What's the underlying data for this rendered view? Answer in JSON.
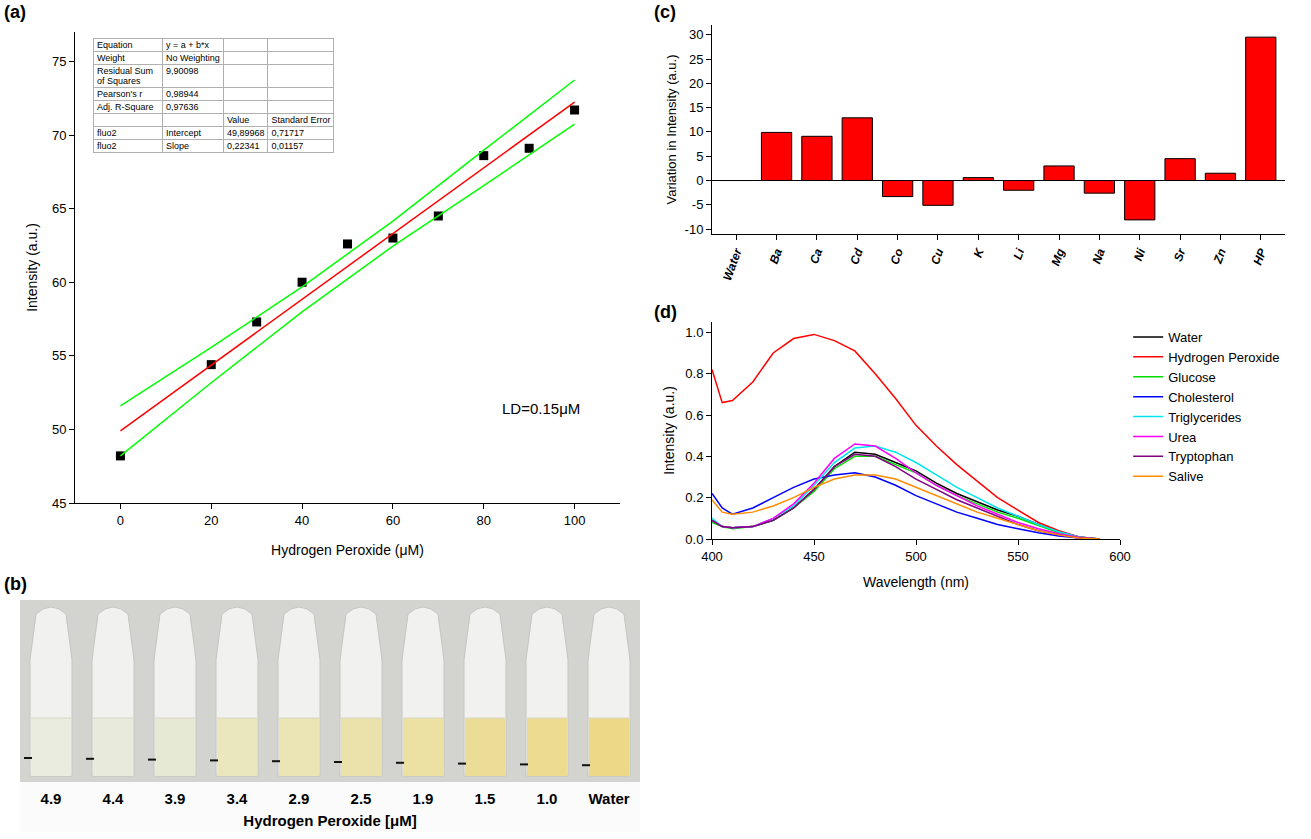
{
  "chart_data": [
    {
      "type": "scatter",
      "panel": "(a)",
      "xlabel": "Hydrogen Peroxide (μM)",
      "ylabel": "Intensity (a.u.)",
      "annotation": "LD=0.15μM",
      "xlim": [
        -10,
        110
      ],
      "xticks": [
        0,
        20,
        40,
        60,
        80,
        100
      ],
      "ylim": [
        45,
        77
      ],
      "yticks": [
        45,
        50,
        55,
        60,
        65,
        70,
        75
      ],
      "grid": false,
      "table": {
        "info": [
          [
            "Equation",
            "y = a + b*x"
          ],
          [
            "Weight",
            "No Weighting"
          ],
          [
            "Residual Sum of Squares",
            "9,90098"
          ],
          [
            "Pearson's r",
            "0,98944"
          ],
          [
            "Adj. R-Square",
            "0,97636"
          ]
        ],
        "header": [
          "Value",
          "Standard Error"
        ],
        "rows": [
          [
            "fluo2",
            "Intercept",
            "49,89968",
            "0,71717"
          ],
          [
            "fluo2",
            "Slope",
            "0,22341",
            "0,01157"
          ]
        ]
      },
      "series": [
        {
          "type": "scatter",
          "marker": "square",
          "color": "#000000",
          "x": [
            0,
            20,
            30,
            40,
            50,
            60,
            70,
            80,
            90,
            100
          ],
          "values": [
            48.2,
            54.4,
            57.3,
            60.0,
            62.6,
            63.0,
            64.5,
            68.6,
            69.1,
            71.7
          ]
        },
        {
          "type": "line",
          "color": "#ff0000",
          "x": [
            0,
            100
          ],
          "values": [
            49.9,
            72.24
          ]
        },
        {
          "type": "line",
          "color": "#00ff00",
          "x": [
            0,
            20,
            40,
            60,
            80,
            100
          ],
          "values": [
            51.6,
            55.57,
            59.69,
            64.15,
            68.97,
            73.74
          ]
        },
        {
          "type": "line",
          "color": "#00ff00",
          "x": [
            0,
            20,
            40,
            60,
            80,
            100
          ],
          "values": [
            48.2,
            53.17,
            57.99,
            62.45,
            66.57,
            70.74
          ]
        }
      ]
    },
    {
      "type": "photo",
      "panel": "(b)",
      "categories": [
        "4.9",
        "4.4",
        "3.9",
        "3.4",
        "2.9",
        "2.5",
        "1.9",
        "1.5",
        "1.0",
        "Water"
      ],
      "colors": [
        "#e9ecdf",
        "#e8ebdc",
        "#e6e9d4",
        "#eae6bd",
        "#ebe4b4",
        "#ebe1aa",
        "#ece0a3",
        "#ebdc98",
        "#eddb8f",
        "#edd888"
      ],
      "xlabel": "Hydrogen Peroxide [μM]"
    },
    {
      "type": "bar",
      "panel": "(c)",
      "ylabel": "Variation in Intensity (a.u.)",
      "categories": [
        "Water",
        "Ba",
        "Ca",
        "Cd",
        "Co",
        "Cu",
        "K",
        "Li",
        "Mg",
        "Na",
        "Ni",
        "Sr",
        "Zn",
        "HP"
      ],
      "values": [
        0,
        9.9,
        9.1,
        12.9,
        -3.3,
        -5.1,
        0.6,
        -2.0,
        3.0,
        -2.6,
        -8.1,
        4.5,
        1.5,
        29.5
      ],
      "color": "#ff0000",
      "ylim": [
        -11,
        32
      ],
      "yticks": [
        -10,
        -5,
        0,
        5,
        10,
        15,
        20,
        25,
        30
      ],
      "grid": false
    },
    {
      "type": "line",
      "panel": "(d)",
      "xlabel": "Wavelength (nm)",
      "ylabel": "Intensity (a.u.)",
      "x": [
        400,
        405,
        410,
        420,
        430,
        440,
        450,
        460,
        470,
        480,
        490,
        500,
        510,
        520,
        530,
        540,
        550,
        560,
        570,
        580,
        590
      ],
      "xlim": [
        400,
        600
      ],
      "xticks": [
        400,
        450,
        500,
        550,
        600
      ],
      "ylim": [
        0,
        1.05
      ],
      "yticks": [
        {
          "value": 0,
          "label": "0.0"
        },
        0.2,
        0.4,
        0.6,
        0.8,
        {
          "value": 1,
          "label": "1.0"
        }
      ],
      "grid": false,
      "legend": "right",
      "series": [
        {
          "name": "Water",
          "color": "#000000",
          "values": [
            0.09,
            0.06,
            0.055,
            0.06,
            0.09,
            0.15,
            0.24,
            0.35,
            0.42,
            0.41,
            0.37,
            0.33,
            0.27,
            0.22,
            0.18,
            0.14,
            0.11,
            0.07,
            0.035,
            0.01,
            0
          ]
        },
        {
          "name": "Hydrogen Peroxide",
          "color": "#ff0000",
          "values": [
            0.82,
            0.66,
            0.67,
            0.76,
            0.9,
            0.97,
            0.99,
            0.96,
            0.91,
            0.8,
            0.68,
            0.55,
            0.45,
            0.36,
            0.28,
            0.2,
            0.14,
            0.08,
            0.04,
            0.01,
            0
          ]
        },
        {
          "name": "Glucose",
          "color": "#00dd00",
          "values": [
            0.08,
            0.06,
            0.05,
            0.06,
            0.09,
            0.15,
            0.23,
            0.34,
            0.4,
            0.4,
            0.36,
            0.32,
            0.26,
            0.21,
            0.17,
            0.13,
            0.1,
            0.065,
            0.03,
            0.008,
            0
          ]
        },
        {
          "name": "Cholesterol",
          "color": "#0000ff",
          "values": [
            0.22,
            0.15,
            0.12,
            0.15,
            0.2,
            0.25,
            0.29,
            0.31,
            0.32,
            0.3,
            0.26,
            0.21,
            0.17,
            0.13,
            0.1,
            0.07,
            0.05,
            0.03,
            0.015,
            0.005,
            0
          ]
        },
        {
          "name": "Triglycerides",
          "color": "#00e5ee",
          "values": [
            0.1,
            0.06,
            0.055,
            0.06,
            0.1,
            0.16,
            0.26,
            0.37,
            0.44,
            0.45,
            0.42,
            0.37,
            0.31,
            0.25,
            0.2,
            0.15,
            0.11,
            0.07,
            0.035,
            0.01,
            0
          ]
        },
        {
          "name": "Urea",
          "color": "#ff00ff",
          "values": [
            0.09,
            0.06,
            0.055,
            0.06,
            0.1,
            0.17,
            0.27,
            0.39,
            0.46,
            0.45,
            0.39,
            0.32,
            0.26,
            0.21,
            0.16,
            0.12,
            0.08,
            0.05,
            0.025,
            0.008,
            0
          ]
        },
        {
          "name": "Tryptophan",
          "color": "#800080",
          "values": [
            0.09,
            0.06,
            0.055,
            0.06,
            0.09,
            0.15,
            0.24,
            0.35,
            0.41,
            0.4,
            0.35,
            0.29,
            0.24,
            0.19,
            0.15,
            0.11,
            0.07,
            0.04,
            0.02,
            0.005,
            0
          ]
        },
        {
          "name": "Salive",
          "color": "#ff8c00",
          "values": [
            0.19,
            0.13,
            0.12,
            0.13,
            0.16,
            0.2,
            0.25,
            0.29,
            0.31,
            0.31,
            0.29,
            0.25,
            0.21,
            0.17,
            0.13,
            0.1,
            0.07,
            0.04,
            0.02,
            0.005,
            0
          ]
        }
      ]
    }
  ]
}
